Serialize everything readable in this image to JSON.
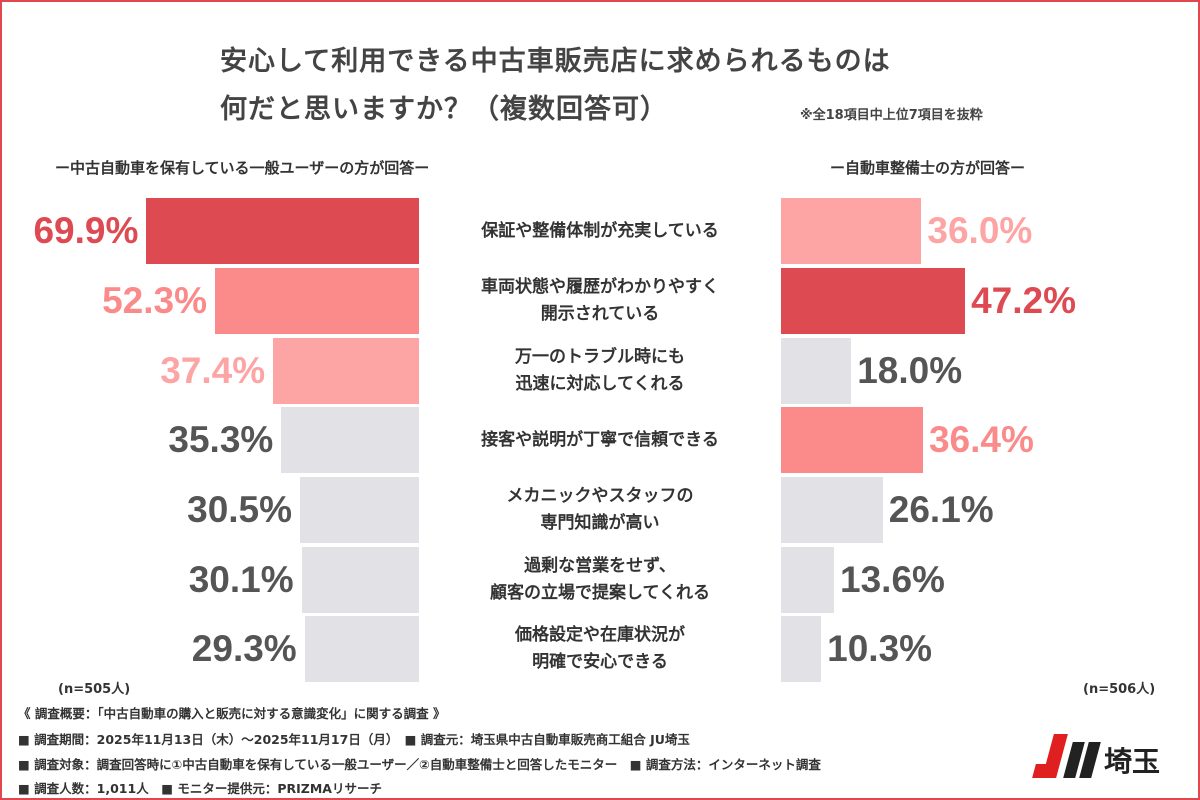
{
  "title_line1": "安心して利用できる中古車販売店に求められるものは",
  "title_line2": "何だと思いますか？（複数回答可）",
  "note": "※全18項目中上位7項目を抜粋",
  "chart_data": {
    "type": "bar",
    "orientation": "horizontal-butterfly",
    "categories": [
      "保証や整備体制が充実している",
      "車両状態や履歴がわかりやすく\n開示されている",
      "万一のトラブル時にも\n迅速に対応してくれる",
      "接客や説明が丁寧で信頼できる",
      "メカニックやスタッフの\n専門知識が高い",
      "過剰な営業をせず、\n顧客の立場で提案してくれる",
      "価格設定や在庫状況が\n明確で安心できる"
    ],
    "series": [
      {
        "name": "ー中古自動車を保有している一般ユーザーの方が回答ー",
        "values": [
          69.9,
          52.3,
          37.4,
          35.3,
          30.5,
          30.1,
          29.3
        ],
        "labels": [
          "69.9%",
          "52.3%",
          "37.4%",
          "35.3%",
          "30.5%",
          "30.1%",
          "29.3%"
        ],
        "n": "(n=505人)"
      },
      {
        "name": "ー自動車整備士の方が回答ー",
        "values": [
          36.0,
          47.2,
          18.0,
          36.4,
          26.1,
          13.6,
          10.3
        ],
        "labels": [
          "36.0%",
          "47.2%",
          "18.0%",
          "36.4%",
          "26.1%",
          "13.6%",
          "10.3%"
        ],
        "n": "(n=506人)"
      }
    ],
    "colors": {
      "rank1": "#dd4a52",
      "rank2": "#fb8a8a",
      "rank3": "#fda4a4",
      "other": "#e2e1e5",
      "other_text": "#555555"
    }
  },
  "footer": [
    "《 調査概要：「中古自動車の購入と販売に対する意識変化」に関する調査 》",
    "■ 調査期間：2025年11月13日（木）～2025年11月17日（月）　■ 調査元：埼玉県中古自動車販売商工組合 JU埼玉",
    "■ 調査対象：調査回答時に①中古自動車を保有している一般ユーザー／②自動車整備士と回答したモニター　■ 調査方法：インターネット調査",
    "■ 調査人数：1,011人　■ モニター提供元：PRIZMAリサーチ"
  ],
  "logo_text": "JU埼玉"
}
